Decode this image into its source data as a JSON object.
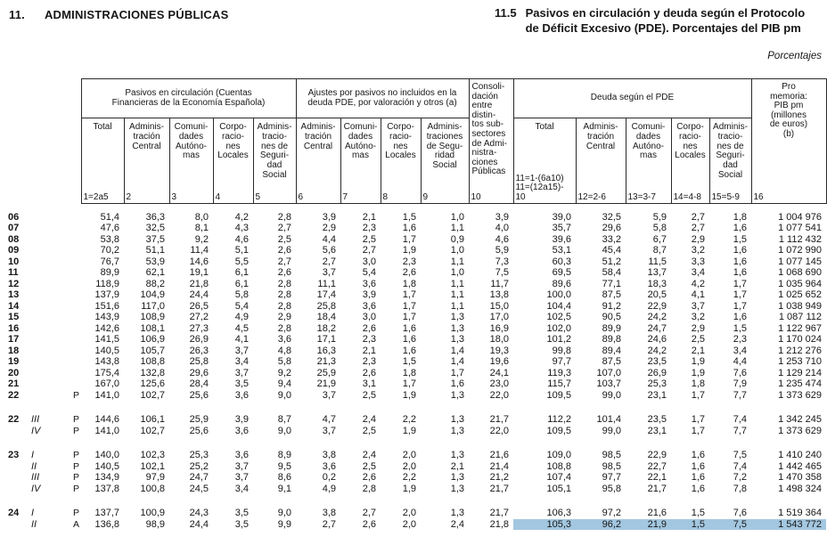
{
  "header": {
    "section_number": "11.",
    "section_title": "ADMINISTRACIONES PÚBLICAS",
    "table_number": "11.5",
    "table_title": "Pasivos en circulación y deuda según el Protocolo\nde Déficit Excesivo (PDE). Porcentajes del PIB pm",
    "units_label": "Porcentajes"
  },
  "table": {
    "highlight_color": "#a3c7e0",
    "group_headers": {
      "pasivos": "Pasivos en circulación (Cuentas\nFinancieras de la Economía Española)",
      "ajustes": "Ajustes por pasivos no incluidos en la\ndeuda PDE, por valoración y otros (a)",
      "consolidacion": "Consoli-\ndación\nentre\ndistin-\ntos sub-\nsectores\nde Admi-\nnistra-\nciones\nPúblicas",
      "consolidacion_number": "10",
      "deuda": "Deuda según el PDE",
      "pro_memoria": "Pro\nmemoria:\nPIB pm\n(millones\nde euros)\n(b)",
      "pro_memoria_number": "16"
    },
    "columns": [
      {
        "label": "Total",
        "number": "1=2a5"
      },
      {
        "label": "Adminis-\ntración\nCentral",
        "number": "2"
      },
      {
        "label": "Comuni-\ndades\nAutóno-\nmas",
        "number": "3"
      },
      {
        "label": "Corpo-\nracio-\nnes\nLocales",
        "number": "4"
      },
      {
        "label": "Adminis-\ntracio-\nnes de\nSeguri-\ndad\nSocial",
        "number": "5"
      },
      {
        "label": "Adminis-\ntración\nCentral",
        "number": "6"
      },
      {
        "label": "Comuni-\ndades\nAutóno-\nmas",
        "number": "7"
      },
      {
        "label": "Corpo-\nracio-\nnes\nLocales",
        "number": "8"
      },
      {
        "label": "Adminis-\ntraciones\nde Segu-\nridad\nSocial",
        "number": "9"
      },
      {
        "label": "Total",
        "number": "11=1-(6a10)\n11=(12a15)-\n10"
      },
      {
        "label": "Adminis-\ntración\nCentral",
        "number": "12=2-6"
      },
      {
        "label": "Comuni-\ndades\nAutóno-\nmas",
        "number": "13=3-7"
      },
      {
        "label": "Corpo-\nracio-\nnes\nLocales",
        "number": "14=4-8"
      },
      {
        "label": "Adminis-\ntracio-\nnes de\nSeguri-\ndad\nSocial",
        "number": "15=5-9"
      }
    ],
    "rows": [
      {
        "year": "06",
        "quarter": "",
        "marker": "",
        "gap_before": false,
        "highlight_from": -1,
        "values": [
          "51,4",
          "36,3",
          "8,0",
          "4,2",
          "2,8",
          "3,9",
          "2,1",
          "1,5",
          "1,0",
          "3,9",
          "39,0",
          "32,5",
          "5,9",
          "2,7",
          "1,8",
          "1 004 976"
        ]
      },
      {
        "year": "07",
        "quarter": "",
        "marker": "",
        "gap_before": false,
        "highlight_from": -1,
        "values": [
          "47,6",
          "32,5",
          "8,1",
          "4,3",
          "2,7",
          "2,9",
          "2,3",
          "1,6",
          "1,1",
          "4,0",
          "35,7",
          "29,6",
          "5,8",
          "2,7",
          "1,6",
          "1 077 541"
        ]
      },
      {
        "year": "08",
        "quarter": "",
        "marker": "",
        "gap_before": false,
        "highlight_from": -1,
        "values": [
          "53,8",
          "37,5",
          "9,2",
          "4,6",
          "2,5",
          "4,4",
          "2,5",
          "1,7",
          "0,9",
          "4,6",
          "39,6",
          "33,2",
          "6,7",
          "2,9",
          "1,5",
          "1 112 432"
        ]
      },
      {
        "year": "09",
        "quarter": "",
        "marker": "",
        "gap_before": false,
        "highlight_from": -1,
        "values": [
          "70,2",
          "51,1",
          "11,4",
          "5,1",
          "2,6",
          "5,6",
          "2,7",
          "1,9",
          "1,0",
          "5,9",
          "53,1",
          "45,4",
          "8,7",
          "3,2",
          "1,6",
          "1 072 990"
        ]
      },
      {
        "year": "10",
        "quarter": "",
        "marker": "",
        "gap_before": false,
        "highlight_from": -1,
        "values": [
          "76,7",
          "53,9",
          "14,6",
          "5,5",
          "2,7",
          "2,7",
          "3,0",
          "2,3",
          "1,1",
          "7,3",
          "60,3",
          "51,2",
          "11,5",
          "3,3",
          "1,6",
          "1 077 145"
        ]
      },
      {
        "year": "11",
        "quarter": "",
        "marker": "",
        "gap_before": false,
        "highlight_from": -1,
        "values": [
          "89,9",
          "62,1",
          "19,1",
          "6,1",
          "2,6",
          "3,7",
          "5,4",
          "2,6",
          "1,0",
          "7,5",
          "69,5",
          "58,4",
          "13,7",
          "3,4",
          "1,6",
          "1 068 690"
        ]
      },
      {
        "year": "12",
        "quarter": "",
        "marker": "",
        "gap_before": false,
        "highlight_from": -1,
        "values": [
          "118,9",
          "88,2",
          "21,8",
          "6,1",
          "2,8",
          "11,1",
          "3,6",
          "1,8",
          "1,1",
          "11,7",
          "89,6",
          "77,1",
          "18,3",
          "4,2",
          "1,7",
          "1 035 964"
        ]
      },
      {
        "year": "13",
        "quarter": "",
        "marker": "",
        "gap_before": false,
        "highlight_from": -1,
        "values": [
          "137,9",
          "104,9",
          "24,4",
          "5,8",
          "2,8",
          "17,4",
          "3,9",
          "1,7",
          "1,1",
          "13,8",
          "100,0",
          "87,5",
          "20,5",
          "4,1",
          "1,7",
          "1 025 652"
        ]
      },
      {
        "year": "14",
        "quarter": "",
        "marker": "",
        "gap_before": false,
        "highlight_from": -1,
        "values": [
          "151,6",
          "117,0",
          "26,5",
          "5,4",
          "2,8",
          "25,8",
          "3,6",
          "1,7",
          "1,1",
          "15,0",
          "104,4",
          "91,2",
          "22,9",
          "3,7",
          "1,7",
          "1 038 949"
        ]
      },
      {
        "year": "15",
        "quarter": "",
        "marker": "",
        "gap_before": false,
        "highlight_from": -1,
        "values": [
          "143,9",
          "108,9",
          "27,2",
          "4,9",
          "2,9",
          "18,4",
          "3,0",
          "1,7",
          "1,3",
          "17,0",
          "102,5",
          "90,5",
          "24,2",
          "3,2",
          "1,6",
          "1 087 112"
        ]
      },
      {
        "year": "16",
        "quarter": "",
        "marker": "",
        "gap_before": false,
        "highlight_from": -1,
        "values": [
          "142,6",
          "108,1",
          "27,3",
          "4,5",
          "2,8",
          "18,2",
          "2,6",
          "1,6",
          "1,3",
          "16,9",
          "102,0",
          "89,9",
          "24,7",
          "2,9",
          "1,5",
          "1 122 967"
        ]
      },
      {
        "year": "17",
        "quarter": "",
        "marker": "",
        "gap_before": false,
        "highlight_from": -1,
        "values": [
          "141,5",
          "106,9",
          "26,9",
          "4,1",
          "3,6",
          "17,1",
          "2,3",
          "1,6",
          "1,3",
          "18,0",
          "101,2",
          "89,8",
          "24,6",
          "2,5",
          "2,3",
          "1 170 024"
        ]
      },
      {
        "year": "18",
        "quarter": "",
        "marker": "",
        "gap_before": false,
        "highlight_from": -1,
        "values": [
          "140,5",
          "105,7",
          "26,3",
          "3,7",
          "4,8",
          "16,3",
          "2,1",
          "1,6",
          "1,4",
          "19,3",
          "99,8",
          "89,4",
          "24,2",
          "2,1",
          "3,4",
          "1 212 276"
        ]
      },
      {
        "year": "19",
        "quarter": "",
        "marker": "",
        "gap_before": false,
        "highlight_from": -1,
        "values": [
          "143,8",
          "108,8",
          "25,8",
          "3,4",
          "5,8",
          "21,3",
          "2,3",
          "1,5",
          "1,4",
          "19,6",
          "97,7",
          "87,5",
          "23,5",
          "1,9",
          "4,4",
          "1 253 710"
        ]
      },
      {
        "year": "20",
        "quarter": "",
        "marker": "",
        "gap_before": false,
        "highlight_from": -1,
        "values": [
          "175,4",
          "132,8",
          "29,6",
          "3,7",
          "9,2",
          "25,9",
          "2,6",
          "1,8",
          "1,7",
          "24,1",
          "119,3",
          "107,0",
          "26,9",
          "1,9",
          "7,6",
          "1 129 214"
        ]
      },
      {
        "year": "21",
        "quarter": "",
        "marker": "",
        "gap_before": false,
        "highlight_from": -1,
        "values": [
          "167,0",
          "125,6",
          "28,4",
          "3,5",
          "9,4",
          "21,9",
          "3,1",
          "1,7",
          "1,6",
          "23,0",
          "115,7",
          "103,7",
          "25,3",
          "1,8",
          "7,9",
          "1 235 474"
        ]
      },
      {
        "year": "22",
        "quarter": "",
        "marker": "P",
        "gap_before": false,
        "highlight_from": -1,
        "values": [
          "141,0",
          "102,7",
          "25,6",
          "3,6",
          "9,0",
          "3,7",
          "2,5",
          "1,9",
          "1,3",
          "22,0",
          "109,5",
          "99,0",
          "23,1",
          "1,7",
          "7,7",
          "1 373 629"
        ]
      },
      {
        "year": "22",
        "quarter": "III",
        "marker": "P",
        "gap_before": true,
        "highlight_from": -1,
        "values": [
          "144,6",
          "106,1",
          "25,9",
          "3,9",
          "8,7",
          "4,7",
          "2,4",
          "2,2",
          "1,3",
          "21,7",
          "112,2",
          "101,4",
          "23,5",
          "1,7",
          "7,4",
          "1 342 245"
        ]
      },
      {
        "year": "",
        "quarter": "IV",
        "marker": "P",
        "gap_before": false,
        "highlight_from": -1,
        "values": [
          "141,0",
          "102,7",
          "25,6",
          "3,6",
          "9,0",
          "3,7",
          "2,5",
          "1,9",
          "1,3",
          "22,0",
          "109,5",
          "99,0",
          "23,1",
          "1,7",
          "7,7",
          "1 373 629"
        ]
      },
      {
        "year": "23",
        "quarter": "I",
        "marker": "P",
        "gap_before": true,
        "highlight_from": -1,
        "values": [
          "140,0",
          "102,3",
          "25,3",
          "3,6",
          "8,9",
          "3,8",
          "2,4",
          "2,0",
          "1,3",
          "21,6",
          "109,0",
          "98,5",
          "22,9",
          "1,6",
          "7,5",
          "1 410 240"
        ]
      },
      {
        "year": "",
        "quarter": "II",
        "marker": "P",
        "gap_before": false,
        "highlight_from": -1,
        "values": [
          "140,5",
          "102,1",
          "25,2",
          "3,7",
          "9,5",
          "3,6",
          "2,5",
          "2,0",
          "2,1",
          "21,4",
          "108,8",
          "98,5",
          "22,7",
          "1,6",
          "7,4",
          "1 442 465"
        ]
      },
      {
        "year": "",
        "quarter": "III",
        "marker": "P",
        "gap_before": false,
        "highlight_from": -1,
        "values": [
          "134,9",
          "97,9",
          "24,7",
          "3,7",
          "8,6",
          "0,2",
          "2,6",
          "2,2",
          "1,3",
          "21,2",
          "107,4",
          "97,7",
          "22,1",
          "1,6",
          "7,2",
          "1 470 358"
        ]
      },
      {
        "year": "",
        "quarter": "IV",
        "marker": "P",
        "gap_before": false,
        "highlight_from": -1,
        "values": [
          "137,8",
          "100,8",
          "24,5",
          "3,4",
          "9,1",
          "4,9",
          "2,8",
          "1,9",
          "1,3",
          "21,7",
          "105,1",
          "95,8",
          "21,7",
          "1,6",
          "7,8",
          "1 498 324"
        ]
      },
      {
        "year": "24",
        "quarter": "I",
        "marker": "P",
        "gap_before": true,
        "highlight_from": -1,
        "values": [
          "137,7",
          "100,9",
          "24,3",
          "3,5",
          "9,0",
          "3,8",
          "2,7",
          "2,0",
          "1,3",
          "21,7",
          "106,3",
          "97,2",
          "21,6",
          "1,5",
          "7,6",
          "1 519 364"
        ]
      },
      {
        "year": "",
        "quarter": "II",
        "marker": "A",
        "gap_before": false,
        "highlight_from": 10,
        "values": [
          "136,8",
          "98,9",
          "24,4",
          "3,5",
          "9,9",
          "2,7",
          "2,6",
          "2,0",
          "2,4",
          "21,8",
          "105,3",
          "96,2",
          "21,9",
          "1,5",
          "7,5",
          "1 543 772"
        ]
      }
    ]
  }
}
